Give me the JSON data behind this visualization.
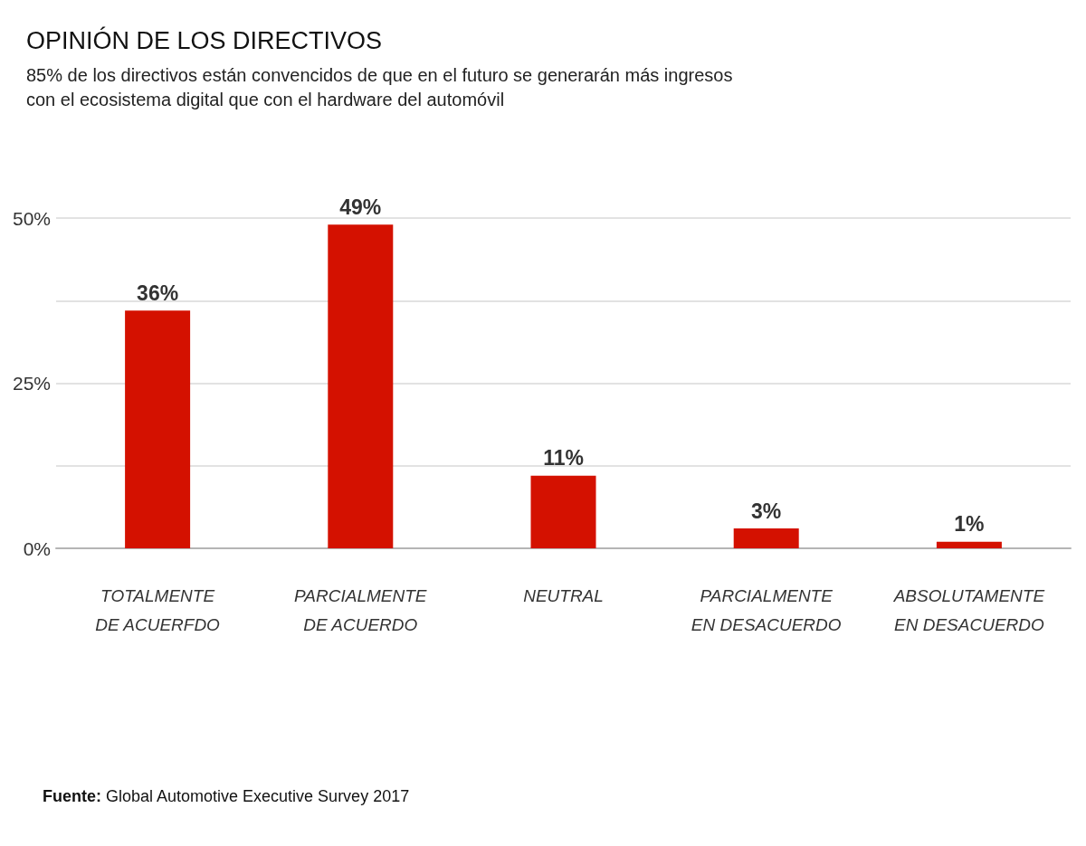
{
  "chart_data": {
    "type": "bar",
    "title": "OPINIÓN DE LOS DIRECTIVOS",
    "subtitle": "85% de los directivos están convencidos de que en el futuro se generarán más ingresos con el ecosistema digital que con el hardware del automóvil",
    "categories": [
      "TOTALMENTE DE ACUERFDO",
      "PARCIALMENTE DE ACUERDO",
      "NEUTRAL",
      "PARCIALMENTE EN DESACUERDO",
      "ABSOLUTAMENTE EN DESACUERDO"
    ],
    "values": [
      36,
      49,
      11,
      3,
      1
    ],
    "value_labels": [
      "36%",
      "49%",
      "11%",
      "3%",
      "1%"
    ],
    "color": "#d41100",
    "ylim": [
      0,
      50
    ],
    "yticks": [
      {
        "value": 0,
        "label": "0%"
      },
      {
        "value": 12.5,
        "label": null
      },
      {
        "value": 25,
        "label": "25%"
      },
      {
        "value": 37.5,
        "label": null
      },
      {
        "value": 50,
        "label": "50%"
      }
    ],
    "grid": "y",
    "annotations": [
      "Fuente: Global Automotive Executive Survey 2017"
    ]
  }
}
